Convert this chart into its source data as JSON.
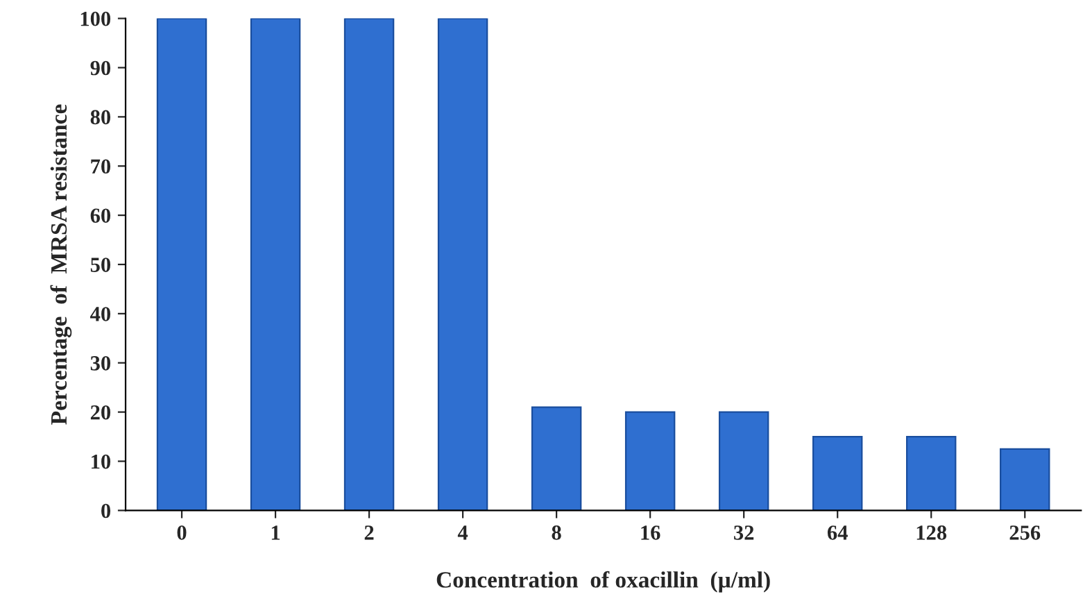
{
  "chart_data": {
    "type": "bar",
    "xlabel": "Concentration  of oxacillin  (µ/ml)",
    "ylabel": "Percentage  of  MRSA resistance",
    "categories": [
      "0",
      "1",
      "2",
      "4",
      "8",
      "16",
      "32",
      "64",
      "128",
      "256"
    ],
    "values": [
      100,
      100,
      100,
      100,
      21,
      20,
      20,
      15,
      15,
      12.5
    ],
    "color": "#2f6fd0",
    "ylim": [
      0,
      100
    ],
    "yticks": [
      0,
      10,
      20,
      30,
      40,
      50,
      60,
      70,
      80,
      90,
      100
    ],
    "grid": false
  }
}
